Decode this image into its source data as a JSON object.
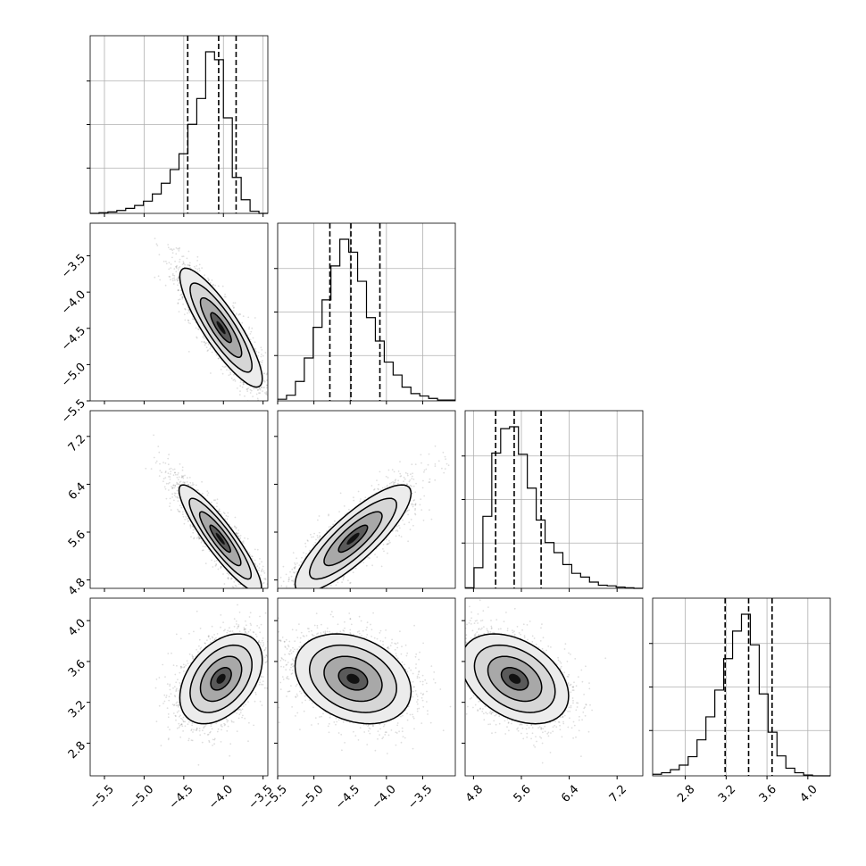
{
  "chart_data": {
    "type": "corner",
    "parameters": [
      {
        "range": [
          -5.68,
          -3.44
        ],
        "ticks": [
          "-5.5",
          "-5.0",
          "-4.5",
          "-4.0",
          "-3.5"
        ],
        "tick_values": [
          -5.5,
          -5.0,
          -4.5,
          -4.0,
          -3.5
        ],
        "quantiles": [
          -4.45,
          -4.06,
          -3.84
        ]
      },
      {
        "range": [
          -5.5,
          -3.05
        ],
        "ticks": [
          "-5.5",
          "-5.0",
          "-4.5",
          "-4.0",
          "-3.5"
        ],
        "tick_values": [
          -5.5,
          -5.0,
          -4.5,
          -4.0,
          -3.5
        ],
        "quantiles": [
          -4.78,
          -4.49,
          -4.09
        ]
      },
      {
        "range": [
          4.66,
          7.63
        ],
        "ticks": [
          "4.8",
          "5.6",
          "6.4",
          "7.2"
        ],
        "tick_values": [
          4.8,
          5.6,
          6.4,
          7.2
        ],
        "quantiles": [
          5.17,
          5.48,
          5.93
        ]
      },
      {
        "range": [
          2.48,
          4.22
        ],
        "ticks": [
          "2.8",
          "3.2",
          "3.6",
          "4.0"
        ],
        "tick_values": [
          2.8,
          3.2,
          3.6,
          4.0
        ],
        "quantiles": [
          3.19,
          3.42,
          3.65
        ]
      }
    ],
    "histograms": [
      {
        "counts": [
          0,
          1,
          2,
          4,
          7,
          11,
          17,
          27,
          42,
          61,
          83,
          124,
          160,
          225,
          214,
          133,
          50,
          19,
          3,
          0
        ]
      },
      {
        "counts": [
          2,
          7,
          24,
          53,
          91,
          125,
          167,
          200,
          184,
          148,
          103,
          74,
          48,
          32,
          17,
          9,
          6,
          3,
          1,
          1
        ]
      },
      {
        "counts": [
          1,
          33,
          115,
          216,
          255,
          258,
          214,
          160,
          109,
          73,
          57,
          38,
          24,
          18,
          10,
          5,
          4,
          2,
          1,
          0
        ]
      },
      {
        "counts": [
          2,
          4,
          8,
          14,
          25,
          47,
          77,
          112,
          153,
          189,
          211,
          171,
          107,
          57,
          26,
          10,
          4,
          1,
          0,
          0
        ]
      }
    ],
    "correlations": [
      {
        "row": 1,
        "col": 0,
        "mean": [
          -4.03,
          -4.49
        ],
        "sigma": [
          0.26,
          0.41
        ],
        "rho": -0.86
      },
      {
        "row": 2,
        "col": 0,
        "mean": [
          -4.04,
          5.49
        ],
        "sigma": [
          0.26,
          0.45
        ],
        "rho": -0.9
      },
      {
        "row": 2,
        "col": 1,
        "mean": [
          -4.46,
          5.49
        ],
        "sigma": [
          0.4,
          0.45
        ],
        "rho": 0.84
      },
      {
        "row": 3,
        "col": 0,
        "mean": [
          -4.03,
          3.43
        ],
        "sigma": [
          0.26,
          0.22
        ],
        "rho": 0.42
      },
      {
        "row": 3,
        "col": 1,
        "mean": [
          -4.46,
          3.43
        ],
        "sigma": [
          0.4,
          0.22
        ],
        "rho": -0.28
      },
      {
        "row": 3,
        "col": 2,
        "mean": [
          5.49,
          3.43
        ],
        "sigma": [
          0.45,
          0.22
        ],
        "rho": -0.38
      }
    ],
    "grid": true,
    "contour_levels_sigma": [
      0.5,
      1.0,
      1.5,
      2.0
    ]
  }
}
